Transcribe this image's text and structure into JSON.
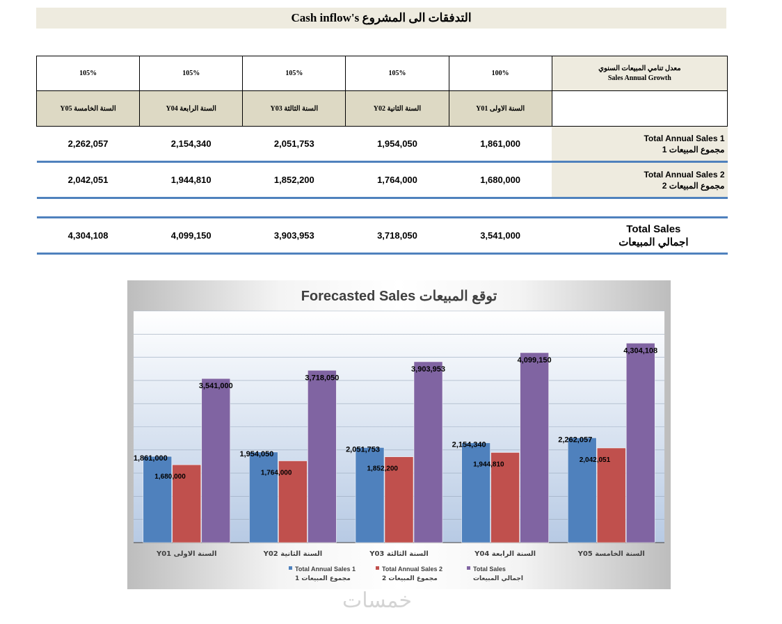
{
  "header": {
    "title": "التدفقات الى المشروع Cash inflow's"
  },
  "table": {
    "growth": {
      "label_ar": "معدل تنامي المبيعات السنوي",
      "label_en": "Sales Annual Growth",
      "values": [
        "105%",
        "105%",
        "105%",
        "105%",
        "100%"
      ]
    },
    "years": [
      "السنة الخامسة Y05",
      "السنة الرابعة Y04",
      "السنة الثالثة Y03",
      "السنة الثانية Y02",
      "السنة الاولى Y01"
    ],
    "sales1": {
      "label_en": "Total Annual Sales 1",
      "label_ar": "مجموع المبيعات 1",
      "values": [
        "2,262,057",
        "2,154,340",
        "2,051,753",
        "1,954,050",
        "1,861,000"
      ]
    },
    "sales2": {
      "label_en": "Total Annual Sales 2",
      "label_ar": "مجموع المبيعات 2",
      "values": [
        "2,042,051",
        "1,944,810",
        "1,852,200",
        "1,764,000",
        "1,680,000"
      ]
    },
    "total": {
      "label_en": "Total Sales",
      "label_ar": "اجمالي المبيعات",
      "values": [
        "4,304,108",
        "4,099,150",
        "3,903,953",
        "3,718,050",
        "3,541,000"
      ]
    }
  },
  "chart_data": {
    "type": "bar",
    "title": "Forecasted Sales توقع المبيعات",
    "categories": [
      "السنة الاولى Y01",
      "السنة الثانية Y02",
      "السنة الثالثة Y03",
      "السنة الرابعة Y04",
      "السنة الخامسة Y05"
    ],
    "series": [
      {
        "name": "Total Annual Sales 1",
        "name_ar": "مجموع المبيعات 1",
        "color": "#4f81bd",
        "values": [
          1861000,
          1954050,
          2051753,
          2154340,
          2262057
        ],
        "labels": [
          "1,861,000",
          "1,954,050",
          "2,051,753",
          "2,154,340",
          "2,262,057"
        ]
      },
      {
        "name": "Total Annual Sales 2",
        "name_ar": "مجموع المبيعات 2",
        "color": "#c0504d",
        "values": [
          1680000,
          1764000,
          1852200,
          1944810,
          2042051
        ],
        "labels": [
          "1,680,000",
          "1,764,000",
          "1,852,200",
          "1,944,810",
          "2,042,051"
        ]
      },
      {
        "name": "Total Sales",
        "name_ar": "اجمالي المبيعات",
        "color": "#8064a2",
        "values": [
          3541000,
          3718050,
          3903953,
          4099150,
          4304108
        ],
        "labels": [
          "3,541,000",
          "3,718,050",
          "3,903,953",
          "4,099,150",
          "4,304,108"
        ]
      }
    ],
    "ylim": [
      0,
      5000000
    ],
    "grid": true,
    "legend": "bottom"
  },
  "watermark": "خمسات"
}
